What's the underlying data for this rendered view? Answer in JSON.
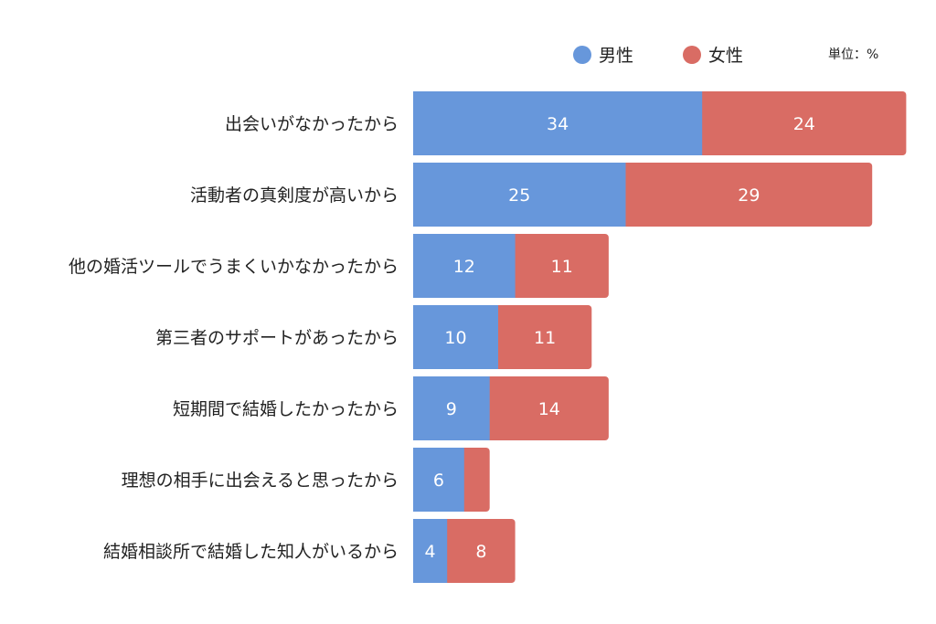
{
  "chart_data": {
    "type": "bar",
    "orientation": "horizontal",
    "stacked": true,
    "unit_label": "単位：%",
    "legend_position": "top-right",
    "grid": false,
    "categories": [
      "出会いがなかったから",
      "活動者の真剣度が高いから",
      "他の婚活ツールでうまくいかなかったから",
      "第三者のサポートがあったから",
      "短期間で結婚したかったから",
      "理想の相手に出会えると思ったから",
      "結婚相談所で結婚した知人がいるから"
    ],
    "series": [
      {
        "name": "男性",
        "color": "#6797db",
        "values": [
          34,
          25,
          12,
          10,
          9,
          6,
          4
        ],
        "labels": [
          "34",
          "25",
          "12",
          "10",
          "9",
          "6",
          "4"
        ]
      },
      {
        "name": "女性",
        "color": "#d96c64",
        "values": [
          24,
          29,
          11,
          11,
          14,
          3,
          8
        ],
        "labels": [
          "24",
          "29",
          "11",
          "11",
          "14",
          "",
          "8"
        ]
      }
    ],
    "xlim": [
      0,
      58
    ]
  }
}
